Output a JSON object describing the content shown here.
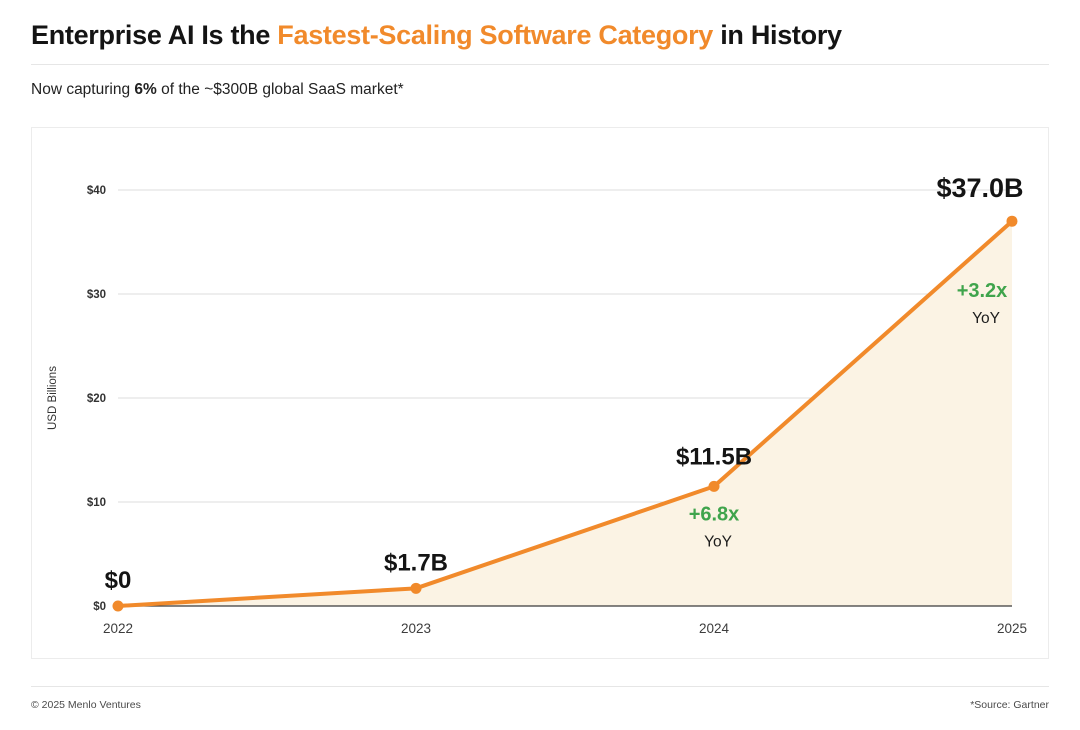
{
  "header": {
    "title": {
      "prefix": "Enterprise AI Is the ",
      "highlight": "Fastest-Scaling Software Category",
      "suffix": " in History"
    },
    "subtitle": {
      "prefix": "Now capturing ",
      "bold": "6%",
      "suffix": " of the ~$300B global SaaS market*"
    }
  },
  "chart_data": {
    "type": "line",
    "title": "Enterprise AI Is the Fastest-Scaling Software Category in History",
    "x": [
      "2022",
      "2023",
      "2024",
      "2025"
    ],
    "values": [
      0,
      1.7,
      11.5,
      37.0
    ],
    "point_labels": [
      "$0",
      "$1.7B",
      "$11.5B",
      "$37.0B"
    ],
    "annotations": [
      {
        "x": "2024",
        "multiplier": "+6.8x",
        "label": "YoY"
      },
      {
        "x": "2025",
        "multiplier": "+3.2x",
        "label": "YoY"
      }
    ],
    "xlabel": "",
    "ylabel": "USD Billions",
    "ylim": [
      0,
      40
    ],
    "yticks": [
      0,
      10,
      20,
      30,
      40
    ],
    "ytick_labels": [
      "$0",
      "$10",
      "$20",
      "$30",
      "$40"
    ],
    "grid": true,
    "area_fill": true,
    "legend": "none"
  },
  "colors": {
    "orange": "#F18A2B",
    "green": "#3FA44C",
    "area": "#FBF3E4",
    "grid": "#DDDDDD",
    "axis": "#3A3A3A",
    "text_dark": "#141414",
    "muted": "#4A4A4A"
  },
  "footer": {
    "left": "© 2025 Menlo Ventures",
    "right": "*Source: Gartner"
  }
}
